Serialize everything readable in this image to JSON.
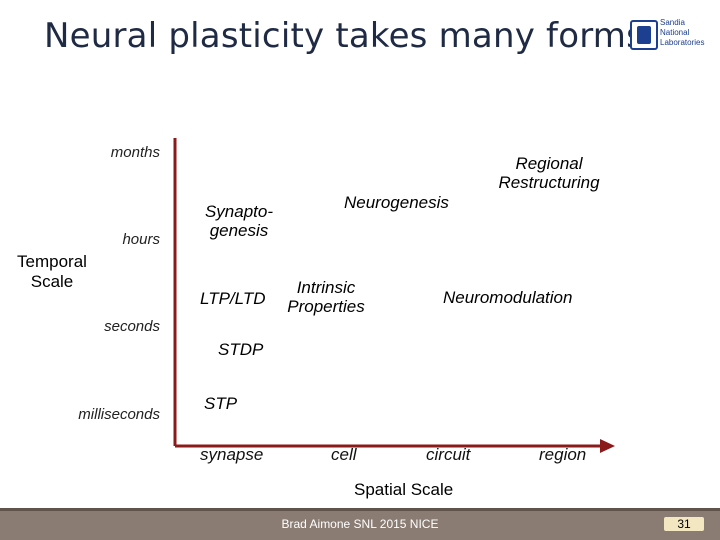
{
  "slide": {
    "title": "Neural plasticity takes many forms",
    "logo_text": "Sandia\nNational\nLaboratories",
    "footer": "Brad Aimone SNL 2015 NICE",
    "page_number": "31"
  },
  "diagram": {
    "y_axis_label": "Temporal Scale",
    "x_axis_label": "Spatial Scale",
    "y_ticks": [
      "months",
      "hours",
      "seconds",
      "milliseconds"
    ],
    "x_ticks": [
      "synapse",
      "cell",
      "circuit",
      "region"
    ],
    "items": [
      {
        "label": "Synapto-\ngenesis"
      },
      {
        "label": "Neurogenesis"
      },
      {
        "label": "Regional\nRestructuring"
      },
      {
        "label": "Intrinsic\nProperties"
      },
      {
        "label": "LTP/LTD"
      },
      {
        "label": "Neuromodulation"
      },
      {
        "label": "STDP"
      },
      {
        "label": "STP"
      }
    ]
  }
}
